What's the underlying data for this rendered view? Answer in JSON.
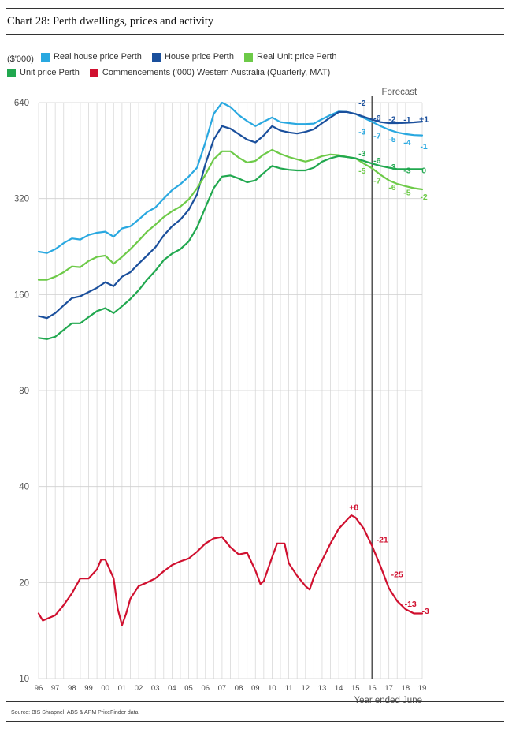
{
  "header": {
    "title": "Chart 28: Perth dwellings, prices and activity"
  },
  "legend": {
    "unit": "($'000)",
    "items": [
      {
        "label": "Real house price Perth",
        "color": "#29a8e0"
      },
      {
        "label": "House price Perth",
        "color": "#1a4f9c"
      },
      {
        "label": "Real Unit price Perth",
        "color": "#6dca48"
      },
      {
        "label": "Unit price Perth",
        "color": "#21a84f"
      },
      {
        "label": "Commencements ('000) Western Australia (Quarterly, MAT)",
        "color": "#d0102f"
      }
    ]
  },
  "footer": {
    "source": "Source: BIS Shrapnel, ABS & APM PriceFinder data"
  },
  "chart_data": {
    "type": "line",
    "y_scale": "log2",
    "ylim": [
      10,
      640
    ],
    "yticks": [
      640,
      320,
      160,
      80,
      40,
      20,
      10
    ],
    "xlim": [
      1996,
      2019
    ],
    "x_ticks": [
      "96",
      "97",
      "98",
      "99",
      "00",
      "01",
      "02",
      "03",
      "04",
      "05",
      "06",
      "07",
      "08",
      "09",
      "10",
      "11",
      "12",
      "13",
      "14",
      "15",
      "16",
      "17",
      "18",
      "19"
    ],
    "xlabel": "Year ended June",
    "forecast_label": "Forecast",
    "forecast_start": 2016,
    "grid": true,
    "series": [
      {
        "name": "Real house price Perth",
        "color": "#29a8e0",
        "points": [
          [
            1996,
            218
          ],
          [
            1996.5,
            216
          ],
          [
            1997,
            222
          ],
          [
            1997.5,
            232
          ],
          [
            1998,
            240
          ],
          [
            1998.5,
            238
          ],
          [
            1999,
            246
          ],
          [
            1999.5,
            250
          ],
          [
            2000,
            252
          ],
          [
            2000.5,
            243
          ],
          [
            2001,
            258
          ],
          [
            2001.5,
            262
          ],
          [
            2002,
            275
          ],
          [
            2002.5,
            290
          ],
          [
            2003,
            300
          ],
          [
            2003.5,
            320
          ],
          [
            2004,
            340
          ],
          [
            2004.5,
            355
          ],
          [
            2005,
            375
          ],
          [
            2005.5,
            400
          ],
          [
            2006,
            480
          ],
          [
            2006.5,
            590
          ],
          [
            2007,
            640
          ],
          [
            2007.5,
            620
          ],
          [
            2008,
            585
          ],
          [
            2008.5,
            560
          ],
          [
            2009,
            540
          ],
          [
            2009.5,
            558
          ],
          [
            2010,
            575
          ],
          [
            2010.5,
            556
          ],
          [
            2011,
            552
          ],
          [
            2011.5,
            548
          ],
          [
            2012,
            548
          ],
          [
            2012.5,
            550
          ],
          [
            2013,
            568
          ],
          [
            2013.5,
            585
          ],
          [
            2014,
            600
          ],
          [
            2014.5,
            598
          ],
          [
            2015,
            590
          ],
          [
            2015.5,
            573
          ],
          [
            2016,
            557
          ],
          [
            2016.5,
            540
          ],
          [
            2017,
            526
          ],
          [
            2017.5,
            516
          ],
          [
            2018,
            510
          ],
          [
            2018.5,
            506
          ],
          [
            2019,
            505
          ]
        ]
      },
      {
        "name": "House price Perth",
        "color": "#1a4f9c",
        "points": [
          [
            1996,
            137
          ],
          [
            1996.5,
            135
          ],
          [
            1997,
            140
          ],
          [
            1997.5,
            148
          ],
          [
            1998,
            156
          ],
          [
            1998.5,
            158
          ],
          [
            1999,
            163
          ],
          [
            1999.5,
            168
          ],
          [
            2000,
            175
          ],
          [
            2000.5,
            170
          ],
          [
            2001,
            182
          ],
          [
            2001.5,
            188
          ],
          [
            2002,
            200
          ],
          [
            2002.5,
            212
          ],
          [
            2003,
            225
          ],
          [
            2003.5,
            245
          ],
          [
            2004,
            262
          ],
          [
            2004.5,
            275
          ],
          [
            2005,
            295
          ],
          [
            2005.5,
            330
          ],
          [
            2006,
            410
          ],
          [
            2006.5,
            490
          ],
          [
            2007,
            540
          ],
          [
            2007.5,
            530
          ],
          [
            2008,
            510
          ],
          [
            2008.5,
            490
          ],
          [
            2009,
            480
          ],
          [
            2009.5,
            505
          ],
          [
            2010,
            540
          ],
          [
            2010.5,
            523
          ],
          [
            2011,
            516
          ],
          [
            2011.5,
            512
          ],
          [
            2012,
            518
          ],
          [
            2012.5,
            528
          ],
          [
            2013,
            552
          ],
          [
            2013.5,
            575
          ],
          [
            2014,
            598
          ],
          [
            2014.5,
            598
          ],
          [
            2015,
            590
          ],
          [
            2015.5,
            578
          ],
          [
            2016,
            566
          ],
          [
            2016.5,
            556
          ],
          [
            2017,
            552
          ],
          [
            2017.5,
            552
          ],
          [
            2018,
            553
          ],
          [
            2018.5,
            555
          ],
          [
            2019,
            558
          ]
        ]
      },
      {
        "name": "Real Unit price Perth",
        "color": "#6dca48",
        "points": [
          [
            1996,
            178
          ],
          [
            1996.5,
            178
          ],
          [
            1997,
            182
          ],
          [
            1997.5,
            188
          ],
          [
            1998,
            196
          ],
          [
            1998.5,
            195
          ],
          [
            1999,
            204
          ],
          [
            1999.5,
            210
          ],
          [
            2000,
            212
          ],
          [
            2000.5,
            200
          ],
          [
            2001,
            210
          ],
          [
            2001.5,
            222
          ],
          [
            2002,
            236
          ],
          [
            2002.5,
            252
          ],
          [
            2003,
            265
          ],
          [
            2003.5,
            280
          ],
          [
            2004,
            292
          ],
          [
            2004.5,
            302
          ],
          [
            2005,
            318
          ],
          [
            2005.5,
            345
          ],
          [
            2006,
            380
          ],
          [
            2006.5,
            425
          ],
          [
            2007,
            450
          ],
          [
            2007.5,
            450
          ],
          [
            2008,
            430
          ],
          [
            2008.5,
            415
          ],
          [
            2009,
            420
          ],
          [
            2009.5,
            440
          ],
          [
            2010,
            455
          ],
          [
            2010.5,
            442
          ],
          [
            2011,
            432
          ],
          [
            2011.5,
            425
          ],
          [
            2012,
            418
          ],
          [
            2012.5,
            425
          ],
          [
            2013,
            435
          ],
          [
            2013.5,
            440
          ],
          [
            2014,
            438
          ],
          [
            2014.5,
            432
          ],
          [
            2015,
            428
          ],
          [
            2015.5,
            412
          ],
          [
            2016,
            398
          ],
          [
            2016.5,
            380
          ],
          [
            2017,
            365
          ],
          [
            2017.5,
            356
          ],
          [
            2018,
            350
          ],
          [
            2018.5,
            345
          ],
          [
            2019,
            342
          ]
        ]
      },
      {
        "name": "Unit price Perth",
        "color": "#21a84f",
        "points": [
          [
            1996,
            117
          ],
          [
            1996.5,
            116
          ],
          [
            1997,
            118
          ],
          [
            1997.5,
            124
          ],
          [
            1998,
            130
          ],
          [
            1998.5,
            130
          ],
          [
            1999,
            136
          ],
          [
            1999.5,
            142
          ],
          [
            2000,
            145
          ],
          [
            2000.5,
            140
          ],
          [
            2001,
            147
          ],
          [
            2001.5,
            155
          ],
          [
            2002,
            165
          ],
          [
            2002.5,
            178
          ],
          [
            2003,
            190
          ],
          [
            2003.5,
            205
          ],
          [
            2004,
            215
          ],
          [
            2004.5,
            222
          ],
          [
            2005,
            235
          ],
          [
            2005.5,
            260
          ],
          [
            2006,
            300
          ],
          [
            2006.5,
            345
          ],
          [
            2007,
            375
          ],
          [
            2007.5,
            378
          ],
          [
            2008,
            370
          ],
          [
            2008.5,
            360
          ],
          [
            2009,
            365
          ],
          [
            2009.5,
            385
          ],
          [
            2010,
            405
          ],
          [
            2010.5,
            398
          ],
          [
            2011,
            394
          ],
          [
            2011.5,
            392
          ],
          [
            2012,
            392
          ],
          [
            2012.5,
            400
          ],
          [
            2013,
            418
          ],
          [
            2013.5,
            428
          ],
          [
            2014,
            435
          ],
          [
            2014.5,
            432
          ],
          [
            2015,
            428
          ],
          [
            2015.5,
            420
          ],
          [
            2016,
            412
          ],
          [
            2016.5,
            405
          ],
          [
            2017,
            400
          ],
          [
            2017.5,
            396
          ],
          [
            2018,
            396
          ],
          [
            2018.5,
            396
          ],
          [
            2019,
            396
          ]
        ]
      },
      {
        "name": "Commencements ('000) Western Australia (Quarterly, MAT)",
        "color": "#d0102f",
        "points": [
          [
            1996,
            16.0
          ],
          [
            1996.25,
            15.2
          ],
          [
            1996.5,
            15.4
          ],
          [
            1997,
            15.8
          ],
          [
            1997.5,
            17.0
          ],
          [
            1998,
            18.5
          ],
          [
            1998.5,
            20.6
          ],
          [
            1999,
            20.6
          ],
          [
            1999.5,
            22.0
          ],
          [
            1999.75,
            23.6
          ],
          [
            2000,
            23.6
          ],
          [
            2000.5,
            20.6
          ],
          [
            2000.75,
            16.5
          ],
          [
            2001,
            14.7
          ],
          [
            2001.25,
            16.0
          ],
          [
            2001.5,
            17.8
          ],
          [
            2002,
            19.5
          ],
          [
            2002.5,
            20.0
          ],
          [
            2003,
            20.6
          ],
          [
            2003.5,
            21.7
          ],
          [
            2004,
            22.7
          ],
          [
            2004.5,
            23.3
          ],
          [
            2005,
            23.8
          ],
          [
            2005.5,
            25.0
          ],
          [
            2006,
            26.5
          ],
          [
            2006.5,
            27.5
          ],
          [
            2007,
            27.8
          ],
          [
            2007.5,
            25.8
          ],
          [
            2008,
            24.5
          ],
          [
            2008.5,
            24.8
          ],
          [
            2009,
            21.8
          ],
          [
            2009.3,
            19.8
          ],
          [
            2009.5,
            20.2
          ],
          [
            2010,
            24.0
          ],
          [
            2010.3,
            26.5
          ],
          [
            2010.75,
            26.5
          ],
          [
            2011,
            23.0
          ],
          [
            2011.5,
            21.0
          ],
          [
            2012,
            19.5
          ],
          [
            2012.25,
            19.0
          ],
          [
            2012.5,
            20.8
          ],
          [
            2013,
            23.5
          ],
          [
            2013.5,
            26.5
          ],
          [
            2014,
            29.5
          ],
          [
            2014.5,
            31.5
          ],
          [
            2014.75,
            32.5
          ],
          [
            2015,
            32.0
          ],
          [
            2015.5,
            29.5
          ],
          [
            2016,
            26.0
          ],
          [
            2016.5,
            22.5
          ],
          [
            2017,
            19.2
          ],
          [
            2017.5,
            17.5
          ],
          [
            2018,
            16.5
          ],
          [
            2018.5,
            16.0
          ],
          [
            2019,
            16.0
          ]
        ]
      }
    ],
    "annotations": [
      {
        "text": "-2",
        "x": 2015.4,
        "y": 640,
        "color": "#1a4f9c"
      },
      {
        "text": "-6",
        "x": 2016.3,
        "y": 575,
        "color": "#1a4f9c"
      },
      {
        "text": "-2",
        "x": 2017.2,
        "y": 570,
        "color": "#1a4f9c"
      },
      {
        "text": "-1",
        "x": 2018.1,
        "y": 568,
        "color": "#1a4f9c"
      },
      {
        "text": "+1",
        "x": 2019.1,
        "y": 570,
        "color": "#1a4f9c"
      },
      {
        "text": "-3",
        "x": 2015.4,
        "y": 520,
        "color": "#29a8e0"
      },
      {
        "text": "-7",
        "x": 2016.3,
        "y": 505,
        "color": "#29a8e0"
      },
      {
        "text": "-5",
        "x": 2017.2,
        "y": 492,
        "color": "#29a8e0"
      },
      {
        "text": "-4",
        "x": 2018.1,
        "y": 482,
        "color": "#29a8e0"
      },
      {
        "text": "-1",
        "x": 2019.1,
        "y": 468,
        "color": "#29a8e0"
      },
      {
        "text": "-3",
        "x": 2015.4,
        "y": 445,
        "color": "#21a84f"
      },
      {
        "text": "-6",
        "x": 2016.3,
        "y": 422,
        "color": "#21a84f"
      },
      {
        "text": "-3",
        "x": 2017.2,
        "y": 404,
        "color": "#21a84f"
      },
      {
        "text": "-3",
        "x": 2018.1,
        "y": 393,
        "color": "#21a84f"
      },
      {
        "text": "0",
        "x": 2019.1,
        "y": 393,
        "color": "#21a84f"
      },
      {
        "text": "-5",
        "x": 2015.4,
        "y": 392,
        "color": "#6dca48"
      },
      {
        "text": "-7",
        "x": 2016.3,
        "y": 365,
        "color": "#6dca48"
      },
      {
        "text": "-6",
        "x": 2017.2,
        "y": 348,
        "color": "#6dca48"
      },
      {
        "text": "-5",
        "x": 2018.1,
        "y": 335,
        "color": "#6dca48"
      },
      {
        "text": "-2",
        "x": 2019.1,
        "y": 325,
        "color": "#6dca48"
      },
      {
        "text": "+8",
        "x": 2014.9,
        "y": 34.5,
        "color": "#d0102f"
      },
      {
        "text": "-21",
        "x": 2016.6,
        "y": 27.3,
        "color": "#d0102f"
      },
      {
        "text": "-25",
        "x": 2017.5,
        "y": 21.3,
        "color": "#d0102f"
      },
      {
        "text": "-13",
        "x": 2018.3,
        "y": 17.2,
        "color": "#d0102f"
      },
      {
        "text": "-3",
        "x": 2019.2,
        "y": 16.3,
        "color": "#d0102f"
      }
    ]
  }
}
